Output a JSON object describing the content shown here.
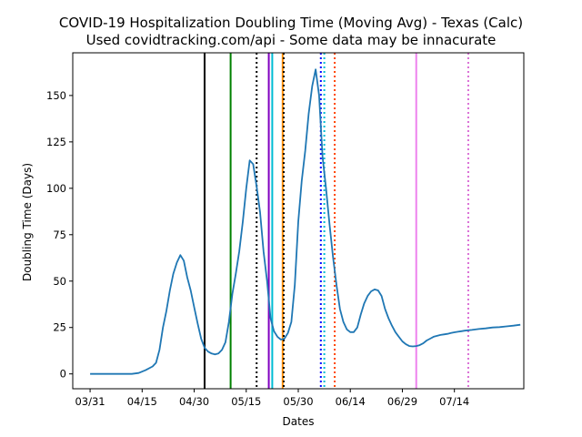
{
  "chart_data": {
    "type": "line",
    "title": "COVID-19 Hospitalization Doubling Time (Moving Avg) - Texas (Calc)",
    "subtitle": "Used covidtracking.com/api - Some data may be innacurate",
    "xlabel": "Dates",
    "ylabel": "Doubling Time (Days)",
    "x_start": "03/31",
    "x_tick_labels": [
      "03/31",
      "04/15",
      "04/30",
      "05/15",
      "05/30",
      "06/14",
      "06/29",
      "07/14"
    ],
    "y_ticks": [
      0,
      25,
      50,
      75,
      100,
      125,
      150
    ],
    "xlim": [
      -5,
      125
    ],
    "ylim": [
      -8,
      173
    ],
    "grid": false,
    "series": [
      {
        "color": "#1f77b4",
        "x": [
          0,
          2,
          4,
          6,
          8,
          10,
          12,
          14,
          16,
          18,
          19,
          20,
          21,
          22,
          23,
          24,
          25,
          26,
          27,
          28,
          29,
          30,
          31,
          32,
          33,
          34,
          35,
          36,
          37,
          38,
          39,
          40,
          41,
          42,
          43,
          44,
          45,
          46,
          47,
          48,
          49,
          50,
          51,
          52,
          53,
          54,
          55,
          56,
          57,
          58,
          59,
          60,
          61,
          62,
          63,
          64,
          65,
          66,
          67,
          68,
          69,
          70,
          71,
          72,
          73,
          74,
          75,
          76,
          77,
          78,
          79,
          80,
          81,
          82,
          83,
          84,
          85,
          86,
          87,
          88,
          89,
          90,
          91,
          92,
          93,
          94,
          95,
          96,
          97,
          98,
          99,
          100,
          101,
          102,
          103,
          104,
          105,
          106,
          107,
          108,
          110,
          112,
          114,
          116,
          118,
          120,
          122,
          124
        ],
        "values": [
          0,
          0,
          0,
          0,
          0,
          0,
          0,
          0.5,
          2,
          4,
          6,
          13,
          25,
          34,
          45,
          54,
          60,
          64,
          61,
          52,
          45,
          36,
          27,
          19,
          14,
          12,
          11,
          10.5,
          11,
          13,
          17,
          28,
          43,
          54,
          66,
          82,
          100,
          115,
          113,
          101,
          87,
          66,
          50,
          30,
          23,
          20,
          18.5,
          19,
          22,
          28,
          48,
          82,
          104,
          120,
          140,
          155,
          164,
          150,
          117,
          100,
          81,
          63,
          48,
          35,
          28,
          24,
          22.5,
          22.5,
          25,
          32,
          38,
          42,
          44.5,
          45.5,
          45,
          42,
          35,
          30,
          26,
          22.5,
          20,
          17.5,
          16,
          15,
          14.8,
          15,
          15.5,
          16.5,
          18,
          19,
          20,
          20.5,
          21,
          21.3,
          21.6,
          22,
          22.4,
          22.7,
          23,
          23.3,
          23.7,
          24.2,
          24.5,
          25,
          25.2,
          25.6,
          26,
          26.5
        ]
      }
    ],
    "markers": [
      {
        "x": 33,
        "color": "#000000",
        "style": "solid"
      },
      {
        "x": 40.5,
        "color": "#008000",
        "style": "solid"
      },
      {
        "x": 48,
        "color": "#000000",
        "style": "dotted"
      },
      {
        "x": 51.5,
        "color": "#8000c0",
        "style": "solid"
      },
      {
        "x": 52.5,
        "color": "#00bcd4",
        "style": "solid"
      },
      {
        "x": 55.5,
        "color": "#ff8c00",
        "style": "solid"
      },
      {
        "x": 55.8,
        "color": "#000000",
        "style": "dotted"
      },
      {
        "x": 66.5,
        "color": "#0000ff",
        "style": "dotted"
      },
      {
        "x": 67.5,
        "color": "#00bcd4",
        "style": "dotted"
      },
      {
        "x": 70.5,
        "color": "#ff4500",
        "style": "dotted"
      },
      {
        "x": 94,
        "color": "#ee82ee",
        "style": "solid"
      },
      {
        "x": 109,
        "color": "#da70d6",
        "style": "dotted"
      }
    ]
  }
}
